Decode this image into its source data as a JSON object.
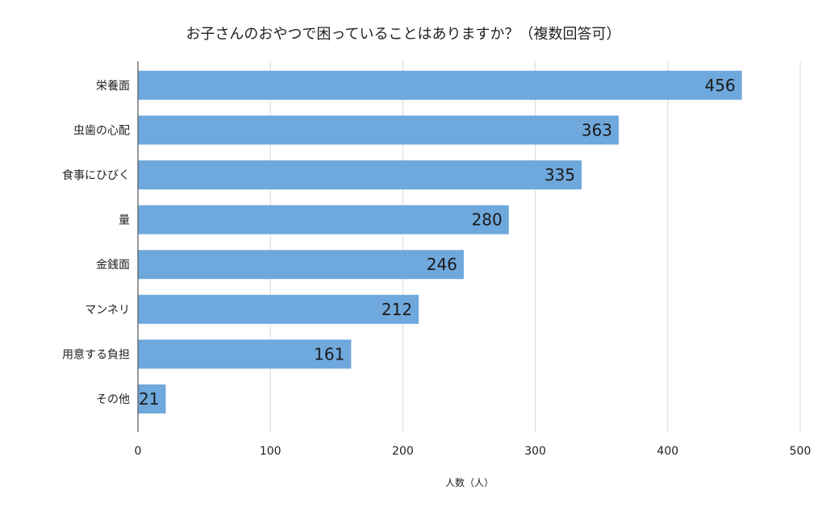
{
  "chart_data": {
    "type": "bar",
    "orientation": "horizontal",
    "title": "お子さんのおやつで困っていることはありますか？（複数回答可）",
    "xlabel": "人数（人）",
    "ylabel": "",
    "categories": [
      "栄養面",
      "虫歯の心配",
      "食事にひびく",
      "量",
      "金銭面",
      "マンネリ",
      "用意する負担",
      "その他"
    ],
    "values": [
      456,
      363,
      335,
      280,
      246,
      212,
      161,
      21
    ],
    "xlim": [
      0,
      500
    ],
    "ticks": [
      0,
      100,
      200,
      300,
      400,
      500
    ],
    "grid": true,
    "data_labels": true,
    "colors": {
      "bar": "#6fa8dc"
    }
  }
}
